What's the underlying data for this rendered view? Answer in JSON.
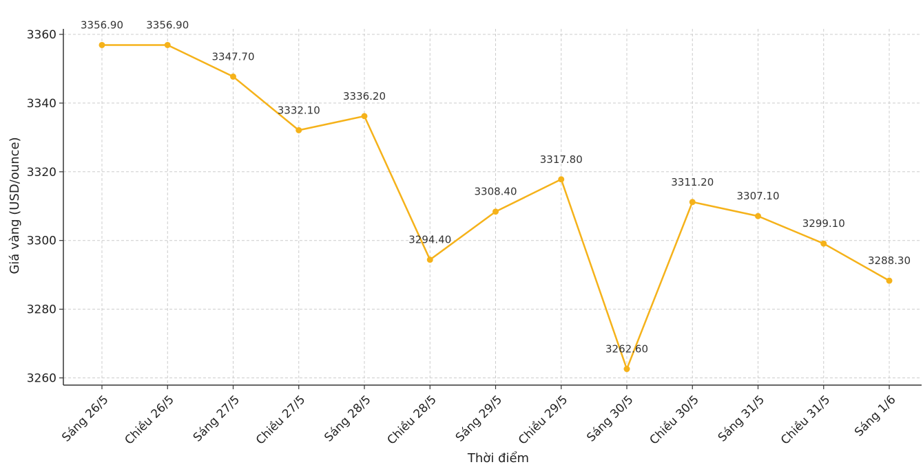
{
  "chart_data": {
    "type": "line",
    "title": "",
    "xlabel": "Thời điểm",
    "ylabel": "Giá vàng (USD/ounce)",
    "categories": [
      "Sáng 26/5",
      "Chiều 26/5",
      "Sáng 27/5",
      "Chiều 27/5",
      "Sáng 28/5",
      "Chiều 28/5",
      "Sáng 29/5",
      "Chiều 29/5",
      "Sáng 30/5",
      "Chiều 30/5",
      "Sáng 31/5",
      "Chiều 31/5",
      "Sáng 1/6"
    ],
    "values": [
      3356.9,
      3356.9,
      3347.7,
      3332.1,
      3336.2,
      3294.4,
      3308.4,
      3317.8,
      3262.6,
      3311.2,
      3307.1,
      3299.1,
      3288.3
    ],
    "data_labels": [
      "3356.90",
      "3356.90",
      "3347.70",
      "3332.10",
      "3336.20",
      "3294.40",
      "3308.40",
      "3317.80",
      "3262.60",
      "3311.20",
      "3307.10",
      "3299.10",
      "3288.30"
    ],
    "yticks": [
      3260,
      3280,
      3300,
      3320,
      3340,
      3360
    ],
    "ylim": [
      3257.9,
      3361.6
    ],
    "grid": true,
    "legend": "none",
    "line_color": "#f5b21a"
  }
}
